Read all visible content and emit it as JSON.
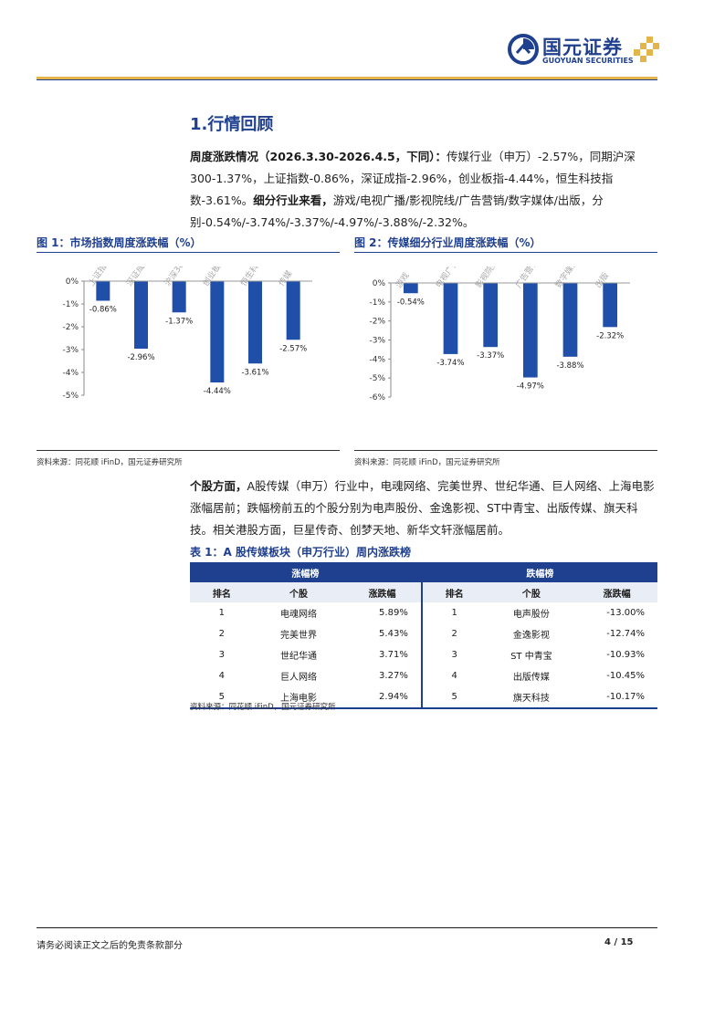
{
  "header": {
    "logo_cn": "国元证券",
    "logo_en": "GUOYUAN SECURITIES"
  },
  "section": {
    "title": "1.行情回顾",
    "para1": {
      "bold1": "周度涨跌情况（2026.3.30-2026.4.5，下同）：",
      "text1": "传媒行业（申万）-2.57%，同期沪深300-1.37%，上证指数-0.86%，深证成指-2.96%，创业板指-4.44%，恒生科技指数-3.61%。",
      "bold2": "细分行业来看，",
      "text2": "游戏/电视广播/影视院线/广告营销/数字媒体/出版，分别-0.54%/-3.74%/-3.37%/-4.97%/-3.88%/-2.32%。"
    },
    "para2": {
      "bold1": "个股方面，",
      "text1": "A股传媒（申万）行业中，电魂网络、完美世界、世纪华通、巨人网络、上海电影涨幅居前；跌幅榜前五的个股分别为电声股份、金逸影视、ST中青宝、出版传媒、旗天科技。相关港股方面，巨星传奇、创梦天地、新华文轩涨幅居前。"
    }
  },
  "figure1": {
    "title": "图 1：市场指数周度涨跌幅（%）",
    "source": "资料来源：同花顺 iFinD，国元证券研究所"
  },
  "figure2": {
    "title": "图 2：传媒细分行业周度涨跌幅（%）",
    "source": "资料来源：同花顺 iFinD，国元证券研究所"
  },
  "chart_data": [
    {
      "type": "bar",
      "categories": [
        "上证指数",
        "深证成指",
        "沪深300指数",
        "创业板指",
        "恒生科技",
        "传媒"
      ],
      "values": [
        -0.86,
        -2.96,
        -1.37,
        -4.44,
        -3.61,
        -2.57
      ],
      "data_labels": [
        "-0.86%",
        "-2.96%",
        "-1.37%",
        "-4.44%",
        "-3.61%",
        "-2.57%"
      ],
      "ylim": [
        -5,
        0
      ],
      "yticks": [
        "0%",
        "-1%",
        "-2%",
        "-3%",
        "-4%",
        "-5%"
      ],
      "color": "#1f4fa8",
      "grid": false
    },
    {
      "type": "bar",
      "categories": [
        "游戏",
        "电视广播",
        "影视院线",
        "广告营销",
        "数字媒体",
        "出版"
      ],
      "values": [
        -0.54,
        -3.74,
        -3.37,
        -4.97,
        -3.88,
        -2.32
      ],
      "data_labels": [
        "-0.54%",
        "-3.74%",
        "-3.37%",
        "-4.97%",
        "-3.88%",
        "-2.32%"
      ],
      "ylim": [
        -6,
        0
      ],
      "yticks": [
        "0%",
        "-1%",
        "-2%",
        "-3%",
        "-4%",
        "-5%",
        "-6%"
      ],
      "color": "#1f4fa8",
      "grid": false
    }
  ],
  "table": {
    "title": "表 1：A 股传媒板块（申万行业）周内涨跌榜",
    "gainers_header": "涨幅榜",
    "losers_header": "跌幅榜",
    "col_rank": "排名",
    "col_stock": "个股",
    "col_change": "涨跌幅",
    "gainers": [
      {
        "rank": "1",
        "name": "电魂网络",
        "change": "5.89%"
      },
      {
        "rank": "2",
        "name": "完美世界",
        "change": "5.43%"
      },
      {
        "rank": "3",
        "name": "世纪华通",
        "change": "3.71%"
      },
      {
        "rank": "4",
        "name": "巨人网络",
        "change": "3.27%"
      },
      {
        "rank": "5",
        "name": "上海电影",
        "change": "2.94%"
      }
    ],
    "losers": [
      {
        "rank": "1",
        "name": "电声股份",
        "change": "-13.00%"
      },
      {
        "rank": "2",
        "name": "金逸影视",
        "change": "-12.74%"
      },
      {
        "rank": "3",
        "name": "ST 中青宝",
        "change": "-10.93%"
      },
      {
        "rank": "4",
        "name": "出版传媒",
        "change": "-10.45%"
      },
      {
        "rank": "5",
        "name": "旗天科技",
        "change": "-10.17%"
      }
    ],
    "source": "资料来源：同花顺 iFinD，国元证券研究所"
  },
  "footer": {
    "disclaimer": "请务必阅读正文之后的免责条款部分",
    "page": "4 / 15"
  }
}
